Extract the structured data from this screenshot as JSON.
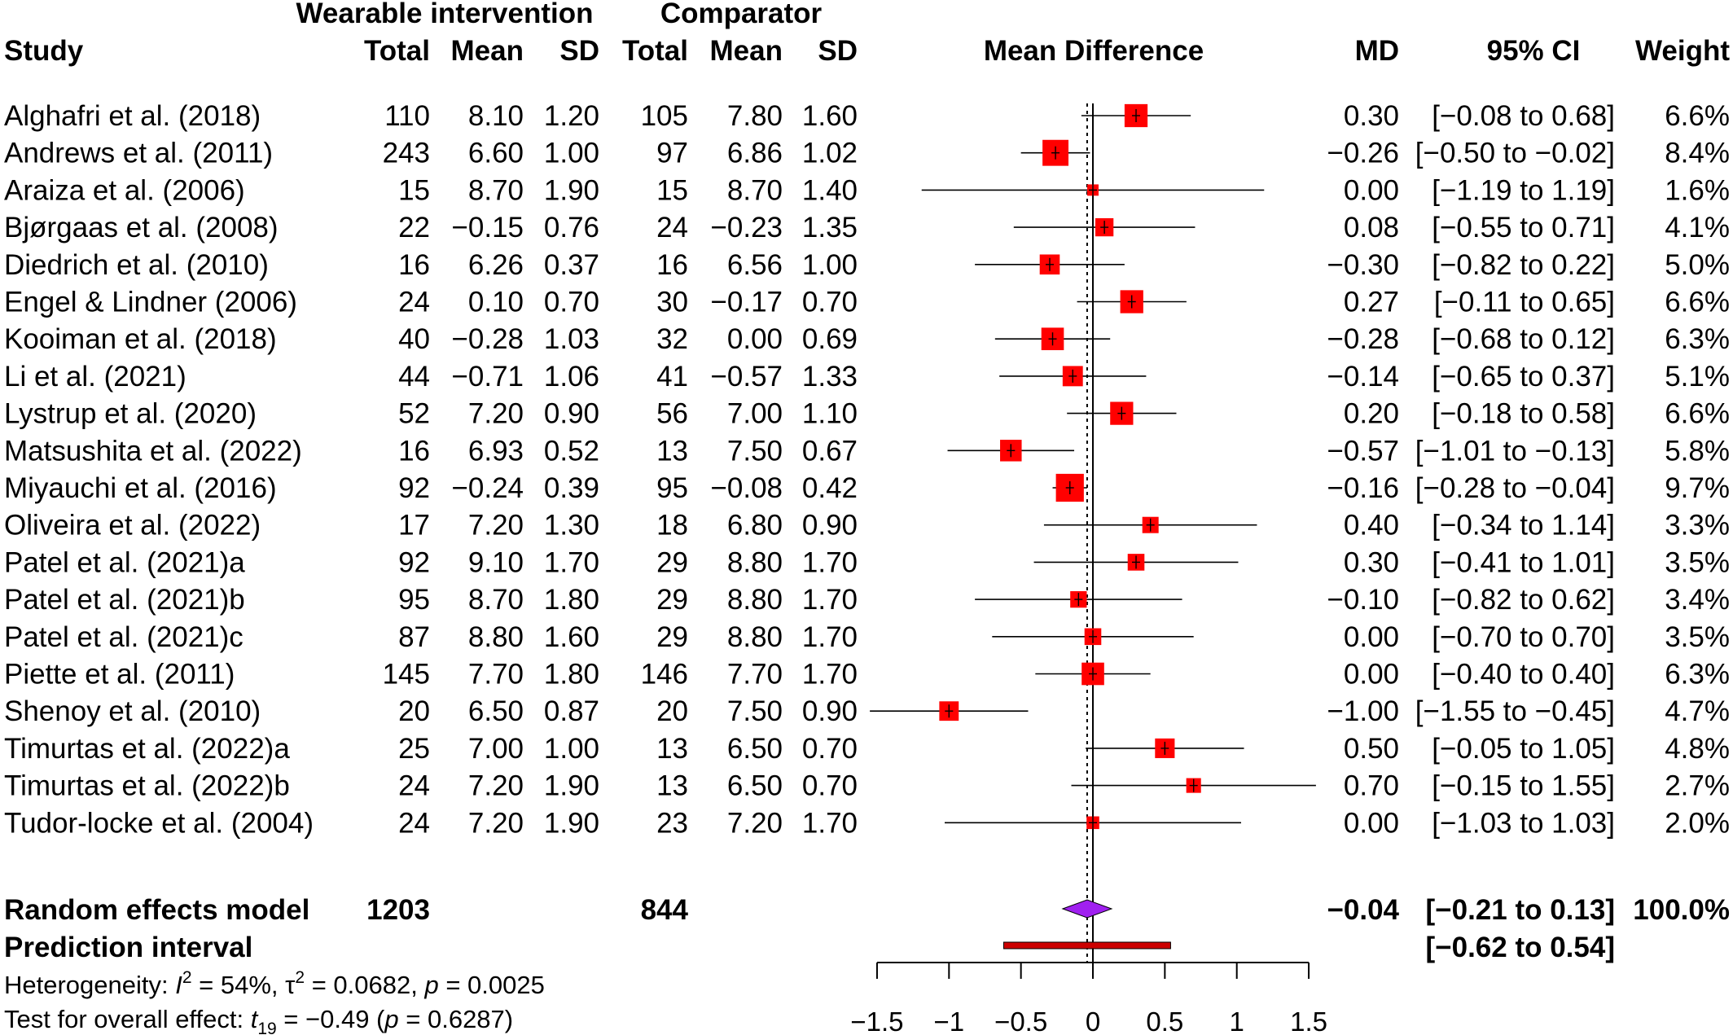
{
  "header": {
    "group_intervention": "Wearable intervention",
    "group_comparator": "Comparator",
    "study": "Study",
    "total": "Total",
    "mean": "Mean",
    "sd": "SD",
    "plot_title": "Mean Difference",
    "md": "MD",
    "ci": "95% CI",
    "weight": "Weight"
  },
  "studies": [
    {
      "study": "Alghafri et al. (2018)",
      "e_total": "110",
      "e_mean": "8.10",
      "e_sd": "1.20",
      "c_total": "105",
      "c_mean": "7.80",
      "c_sd": "1.60",
      "md_text": "0.30",
      "ci_text": "[−0.08 to 0.68]",
      "weight_text": "6.6%",
      "md": 0.3,
      "lower": -0.08,
      "upper": 0.68,
      "weight": 6.6
    },
    {
      "study": "Andrews et al. (2011)",
      "e_total": "243",
      "e_mean": "6.60",
      "e_sd": "1.00",
      "c_total": "97",
      "c_mean": "6.86",
      "c_sd": "1.02",
      "md_text": "−0.26",
      "ci_text": "[−0.50 to −0.02]",
      "weight_text": "8.4%",
      "md": -0.26,
      "lower": -0.5,
      "upper": -0.02,
      "weight": 8.4
    },
    {
      "study": "Araiza et al. (2006)",
      "e_total": "15",
      "e_mean": "8.70",
      "e_sd": "1.90",
      "c_total": "15",
      "c_mean": "8.70",
      "c_sd": "1.40",
      "md_text": "0.00",
      "ci_text": "[−1.19 to 1.19]",
      "weight_text": "1.6%",
      "md": 0.0,
      "lower": -1.19,
      "upper": 1.19,
      "weight": 1.6
    },
    {
      "study": "Bjørgaas et al. (2008)",
      "e_total": "22",
      "e_mean": "−0.15",
      "e_sd": "0.76",
      "c_total": "24",
      "c_mean": "−0.23",
      "c_sd": "1.35",
      "md_text": "0.08",
      "ci_text": "[−0.55 to 0.71]",
      "weight_text": "4.1%",
      "md": 0.08,
      "lower": -0.55,
      "upper": 0.71,
      "weight": 4.1
    },
    {
      "study": "Diedrich et al. (2010)",
      "e_total": "16",
      "e_mean": "6.26",
      "e_sd": "0.37",
      "c_total": "16",
      "c_mean": "6.56",
      "c_sd": "1.00",
      "md_text": "−0.30",
      "ci_text": "[−0.82 to 0.22]",
      "weight_text": "5.0%",
      "md": -0.3,
      "lower": -0.82,
      "upper": 0.22,
      "weight": 5.0
    },
    {
      "study": "Engel & Lindner (2006)",
      "e_total": "24",
      "e_mean": "0.10",
      "e_sd": "0.70",
      "c_total": "30",
      "c_mean": "−0.17",
      "c_sd": "0.70",
      "md_text": "0.27",
      "ci_text": "[−0.11 to 0.65]",
      "weight_text": "6.6%",
      "md": 0.27,
      "lower": -0.11,
      "upper": 0.65,
      "weight": 6.6
    },
    {
      "study": "Kooiman et al. (2018)",
      "e_total": "40",
      "e_mean": "−0.28",
      "e_sd": "1.03",
      "c_total": "32",
      "c_mean": "0.00",
      "c_sd": "0.69",
      "md_text": "−0.28",
      "ci_text": "[−0.68 to 0.12]",
      "weight_text": "6.3%",
      "md": -0.28,
      "lower": -0.68,
      "upper": 0.12,
      "weight": 6.3
    },
    {
      "study": "Li et al. (2021)",
      "e_total": "44",
      "e_mean": "−0.71",
      "e_sd": "1.06",
      "c_total": "41",
      "c_mean": "−0.57",
      "c_sd": "1.33",
      "md_text": "−0.14",
      "ci_text": "[−0.65 to 0.37]",
      "weight_text": "5.1%",
      "md": -0.14,
      "lower": -0.65,
      "upper": 0.37,
      "weight": 5.1
    },
    {
      "study": "Lystrup et al. (2020)",
      "e_total": "52",
      "e_mean": "7.20",
      "e_sd": "0.90",
      "c_total": "56",
      "c_mean": "7.00",
      "c_sd": "1.10",
      "md_text": "0.20",
      "ci_text": "[−0.18 to 0.58]",
      "weight_text": "6.6%",
      "md": 0.2,
      "lower": -0.18,
      "upper": 0.58,
      "weight": 6.6
    },
    {
      "study": "Matsushita et al. (2022)",
      "e_total": "16",
      "e_mean": "6.93",
      "e_sd": "0.52",
      "c_total": "13",
      "c_mean": "7.50",
      "c_sd": "0.67",
      "md_text": "−0.57",
      "ci_text": "[−1.01 to −0.13]",
      "weight_text": "5.8%",
      "md": -0.57,
      "lower": -1.01,
      "upper": -0.13,
      "weight": 5.8
    },
    {
      "study": "Miyauchi et al. (2016)",
      "e_total": "92",
      "e_mean": "−0.24",
      "e_sd": "0.39",
      "c_total": "95",
      "c_mean": "−0.08",
      "c_sd": "0.42",
      "md_text": "−0.16",
      "ci_text": "[−0.28 to −0.04]",
      "weight_text": "9.7%",
      "md": -0.16,
      "lower": -0.28,
      "upper": -0.04,
      "weight": 9.7
    },
    {
      "study": "Oliveira et al. (2022)",
      "e_total": "17",
      "e_mean": "7.20",
      "e_sd": "1.30",
      "c_total": "18",
      "c_mean": "6.80",
      "c_sd": "0.90",
      "md_text": "0.40",
      "ci_text": "[−0.34 to 1.14]",
      "weight_text": "3.3%",
      "md": 0.4,
      "lower": -0.34,
      "upper": 1.14,
      "weight": 3.3
    },
    {
      "study": "Patel et al. (2021)a",
      "e_total": "92",
      "e_mean": "9.10",
      "e_sd": "1.70",
      "c_total": "29",
      "c_mean": "8.80",
      "c_sd": "1.70",
      "md_text": "0.30",
      "ci_text": "[−0.41 to 1.01]",
      "weight_text": "3.5%",
      "md": 0.3,
      "lower": -0.41,
      "upper": 1.01,
      "weight": 3.5
    },
    {
      "study": "Patel et al. (2021)b",
      "e_total": "95",
      "e_mean": "8.70",
      "e_sd": "1.80",
      "c_total": "29",
      "c_mean": "8.80",
      "c_sd": "1.70",
      "md_text": "−0.10",
      "ci_text": "[−0.82 to 0.62]",
      "weight_text": "3.4%",
      "md": -0.1,
      "lower": -0.82,
      "upper": 0.62,
      "weight": 3.4
    },
    {
      "study": "Patel et al. (2021)c",
      "e_total": "87",
      "e_mean": "8.80",
      "e_sd": "1.60",
      "c_total": "29",
      "c_mean": "8.80",
      "c_sd": "1.70",
      "md_text": "0.00",
      "ci_text": "[−0.70 to 0.70]",
      "weight_text": "3.5%",
      "md": 0.0,
      "lower": -0.7,
      "upper": 0.7,
      "weight": 3.5
    },
    {
      "study": "Piette et al. (2011)",
      "e_total": "145",
      "e_mean": "7.70",
      "e_sd": "1.80",
      "c_total": "146",
      "c_mean": "7.70",
      "c_sd": "1.70",
      "md_text": "0.00",
      "ci_text": "[−0.40 to 0.40]",
      "weight_text": "6.3%",
      "md": 0.0,
      "lower": -0.4,
      "upper": 0.4,
      "weight": 6.3
    },
    {
      "study": "Shenoy et al. (2010)",
      "e_total": "20",
      "e_mean": "6.50",
      "e_sd": "0.87",
      "c_total": "20",
      "c_mean": "7.50",
      "c_sd": "0.90",
      "md_text": "−1.00",
      "ci_text": "[−1.55 to −0.45]",
      "weight_text": "4.7%",
      "md": -1.0,
      "lower": -1.55,
      "upper": -0.45,
      "weight": 4.7
    },
    {
      "study": "Timurtas et al. (2022)a",
      "e_total": "25",
      "e_mean": "7.00",
      "e_sd": "1.00",
      "c_total": "13",
      "c_mean": "6.50",
      "c_sd": "0.70",
      "md_text": "0.50",
      "ci_text": "[−0.05 to 1.05]",
      "weight_text": "4.8%",
      "md": 0.5,
      "lower": -0.05,
      "upper": 1.05,
      "weight": 4.8
    },
    {
      "study": "Timurtas et al. (2022)b",
      "e_total": "24",
      "e_mean": "7.20",
      "e_sd": "1.90",
      "c_total": "13",
      "c_mean": "6.50",
      "c_sd": "0.70",
      "md_text": "0.70",
      "ci_text": "[−0.15 to 1.55]",
      "weight_text": "2.7%",
      "md": 0.7,
      "lower": -0.15,
      "upper": 1.55,
      "weight": 2.7
    },
    {
      "study": "Tudor-locke et al. (2004)",
      "e_total": "24",
      "e_mean": "7.20",
      "e_sd": "1.90",
      "c_total": "23",
      "c_mean": "7.20",
      "c_sd": "1.70",
      "md_text": "0.00",
      "ci_text": "[−1.03 to 1.03]",
      "weight_text": "2.0%",
      "md": 0.0,
      "lower": -1.03,
      "upper": 1.03,
      "weight": 2.0
    }
  ],
  "summary": {
    "label": "Random effects model",
    "e_total": "1203",
    "c_total": "844",
    "md_text": "−0.04",
    "ci_text": "[−0.21 to 0.13]",
    "weight_text": "100.0%",
    "md": -0.04,
    "lower": -0.21,
    "upper": 0.13
  },
  "prediction": {
    "label": "Prediction interval",
    "ci_text": "[−0.62 to 0.54]",
    "lower": -0.62,
    "upper": 0.54
  },
  "footer": {
    "het_prefix": "Heterogeneity: ",
    "het_i": "I",
    "het_sup": "2",
    "het_i_value": " = 54%, ",
    "het_tau": "τ",
    "het_tau_value": " = 0.0682, ",
    "het_p": "p",
    "het_p_value": " = 0.0025",
    "test_prefix": "Test for overall effect: ",
    "test_t": "t",
    "test_sub": "19",
    "test_value": " = −0.49 (",
    "test_p": "p",
    "test_p_value": " = 0.6287)"
  },
  "chart_data": {
    "type": "forest",
    "title": "Mean Difference",
    "xlim": [
      -1.5,
      1.5
    ],
    "ticks": [
      -1.5,
      -1,
      -0.5,
      0,
      0.5,
      1,
      1.5
    ],
    "tick_labels": [
      "−1.5",
      "−1",
      "−0.5",
      "0",
      "0.5",
      "1",
      "1.5"
    ],
    "null_value": 0,
    "overall_value": -0.04,
    "colors": {
      "study_square": "#ff0000",
      "summary_diamond": "#a020f0",
      "prediction_bar": "#cc0000"
    }
  }
}
